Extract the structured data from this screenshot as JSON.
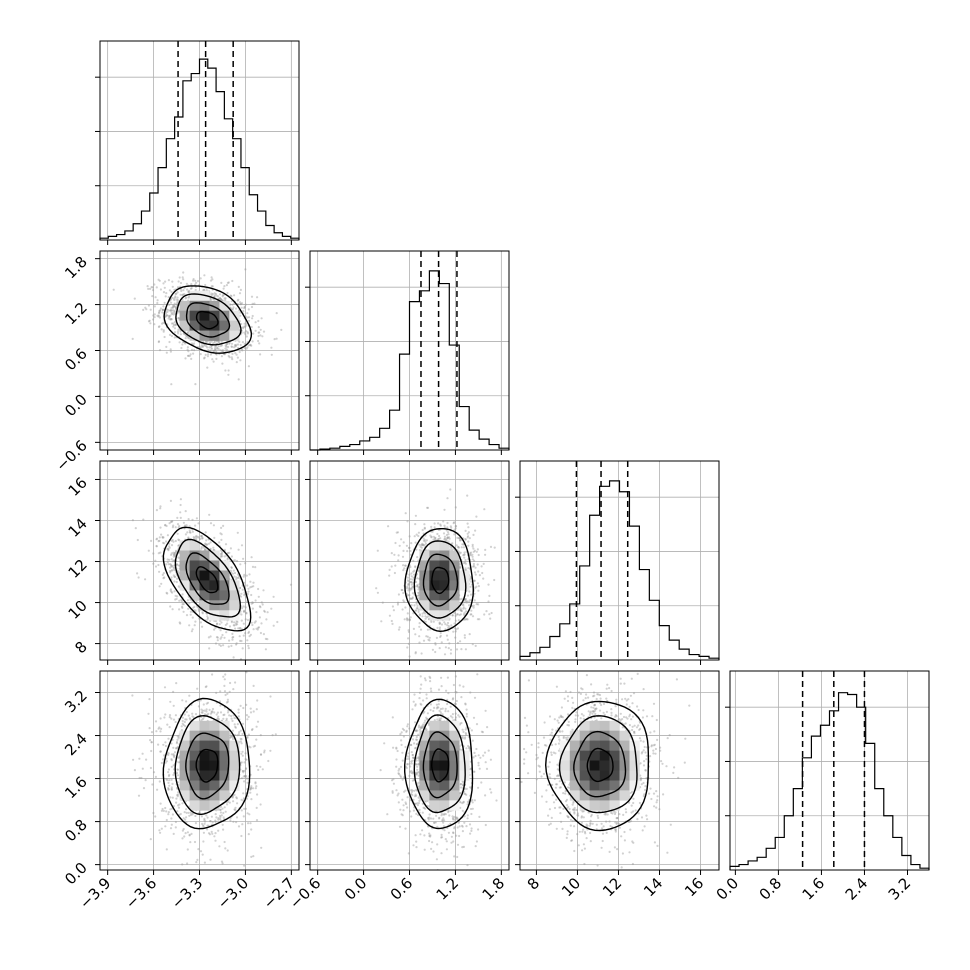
{
  "chart_data": {
    "type": "corner",
    "grid": true,
    "parameters": [
      {
        "mean": -3.25,
        "std": 0.14,
        "range": [
          -3.95,
          -2.65
        ],
        "ticks": [
          -3.9,
          -3.6,
          -3.3,
          -3.0,
          -2.7
        ],
        "tick_labels": [
          "−3.9",
          "−3.6",
          "−3.3",
          "−3.0",
          "−2.7"
        ],
        "quantiles": [
          -3.44,
          -3.26,
          -3.08
        ]
      },
      {
        "mean": 1.0,
        "std": 0.22,
        "range": [
          -0.7,
          1.9
        ],
        "ticks": [
          -0.6,
          0.0,
          0.6,
          1.2,
          1.8
        ],
        "tick_labels": [
          "−0.6",
          "0.0",
          "0.6",
          "1.2",
          "1.8"
        ],
        "quantiles": [
          0.75,
          0.98,
          1.22
        ]
      },
      {
        "mean": 11.1,
        "std": 1.25,
        "range": [
          7.2,
          16.9
        ],
        "ticks": [
          8,
          10,
          12,
          14,
          16
        ],
        "tick_labels": [
          "8",
          "10",
          "12",
          "14",
          "16"
        ],
        "quantiles": [
          9.95,
          11.15,
          12.45
        ]
      },
      {
        "mean": 1.85,
        "std": 0.6,
        "range": [
          -0.1,
          3.6
        ],
        "ticks": [
          0.0,
          0.8,
          1.6,
          2.4,
          3.2
        ],
        "tick_labels": [
          "0.0",
          "0.8",
          "1.6",
          "2.4",
          "3.2"
        ],
        "quantiles": [
          1.25,
          1.83,
          2.4
        ]
      }
    ],
    "histograms": [
      {
        "param": 0,
        "bins": [
          -3.95,
          -2.65
        ],
        "counts": [
          0.01,
          0.02,
          0.03,
          0.05,
          0.09,
          0.16,
          0.26,
          0.4,
          0.56,
          0.68,
          0.88,
          0.92,
          1.0,
          0.95,
          0.82,
          0.67,
          0.56,
          0.4,
          0.25,
          0.16,
          0.08,
          0.04,
          0.02,
          0.01
        ],
        "ylim": [
          0,
          1.1
        ]
      },
      {
        "param": 1,
        "bins": [
          -0.7,
          1.9
        ],
        "counts": [
          0.0,
          0.005,
          0.01,
          0.02,
          0.03,
          0.05,
          0.07,
          0.12,
          0.22,
          0.53,
          0.82,
          0.88,
          0.99,
          0.92,
          0.58,
          0.24,
          0.11,
          0.06,
          0.03,
          0.01
        ],
        "ylim": [
          0,
          1.1
        ]
      },
      {
        "param": 2,
        "bins": [
          7.2,
          16.9
        ],
        "counts": [
          0.02,
          0.04,
          0.07,
          0.13,
          0.2,
          0.31,
          0.52,
          0.8,
          0.96,
          0.99,
          0.93,
          0.74,
          0.5,
          0.33,
          0.19,
          0.11,
          0.06,
          0.03,
          0.02,
          0.01
        ],
        "ylim": [
          0,
          1.1
        ]
      },
      {
        "param": 3,
        "bins": [
          -0.1,
          3.6
        ],
        "counts": [
          0.02,
          0.03,
          0.05,
          0.07,
          0.12,
          0.18,
          0.3,
          0.45,
          0.62,
          0.74,
          0.8,
          0.88,
          0.98,
          0.97,
          0.9,
          0.7,
          0.45,
          0.3,
          0.18,
          0.08,
          0.03,
          0.01
        ],
        "ylim": [
          0,
          1.1
        ]
      }
    ],
    "pairs": [
      {
        "x": 0,
        "y": 1,
        "rho": -0.3
      },
      {
        "x": 0,
        "y": 2,
        "rho": -0.55
      },
      {
        "x": 1,
        "y": 2,
        "rho": 0.0
      },
      {
        "x": 0,
        "y": 3,
        "rho": 0.05
      },
      {
        "x": 1,
        "y": 3,
        "rho": 0.0
      },
      {
        "x": 2,
        "y": 3,
        "rho": 0.0
      }
    ],
    "contour_levels_sigma": [
      0.5,
      1.0,
      1.5,
      2.0
    ],
    "scatter_points_per_panel": 1400
  }
}
